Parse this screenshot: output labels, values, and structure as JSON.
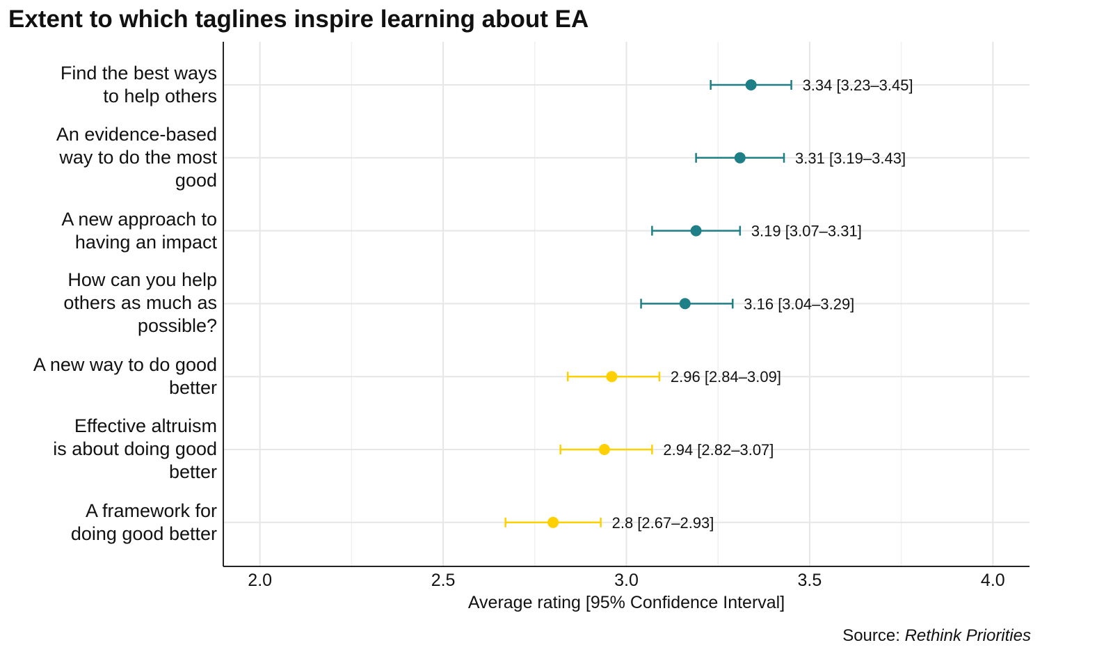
{
  "chart_data": {
    "type": "dot-errorbar",
    "title": "Extent to which taglines inspire learning about EA",
    "xlabel": "Average rating [95% Confidence Interval]",
    "xlim": [
      1.9,
      4.1
    ],
    "xticks": [
      "2.0",
      "2.5",
      "3.0",
      "3.5",
      "4.0"
    ],
    "grid": true,
    "categories": [
      {
        "label": "Find the best ways\nto help others",
        "mean": 3.34,
        "lo": 3.23,
        "hi": 3.45,
        "text": "3.34 [3.23–3.45]",
        "color": "#1e7f86"
      },
      {
        "label": "An evidence-based\nway to do the most\ngood",
        "mean": 3.31,
        "lo": 3.19,
        "hi": 3.43,
        "text": "3.31 [3.19–3.43]",
        "color": "#1e7f86"
      },
      {
        "label": "A new approach to\nhaving an impact",
        "mean": 3.19,
        "lo": 3.07,
        "hi": 3.31,
        "text": "3.19 [3.07–3.31]",
        "color": "#1e7f86"
      },
      {
        "label": "How can you help\nothers as much as\npossible?",
        "mean": 3.16,
        "lo": 3.04,
        "hi": 3.29,
        "text": "3.16 [3.04–3.29]",
        "color": "#1e7f86"
      },
      {
        "label": "A new way to do good\nbetter",
        "mean": 2.96,
        "lo": 2.84,
        "hi": 3.09,
        "text": "2.96 [2.84–3.09]",
        "color": "#ffd000"
      },
      {
        "label": "Effective altruism\nis about doing good\nbetter",
        "mean": 2.94,
        "lo": 2.82,
        "hi": 3.07,
        "text": "2.94 [2.82–3.07]",
        "color": "#ffd000"
      },
      {
        "label": "A framework for\ndoing good better",
        "mean": 2.8,
        "lo": 2.67,
        "hi": 2.93,
        "text": "2.8 [2.67–2.93]",
        "color": "#ffd000"
      }
    ]
  },
  "source": {
    "prefix": "Source: ",
    "name": "Rethink Priorities"
  }
}
